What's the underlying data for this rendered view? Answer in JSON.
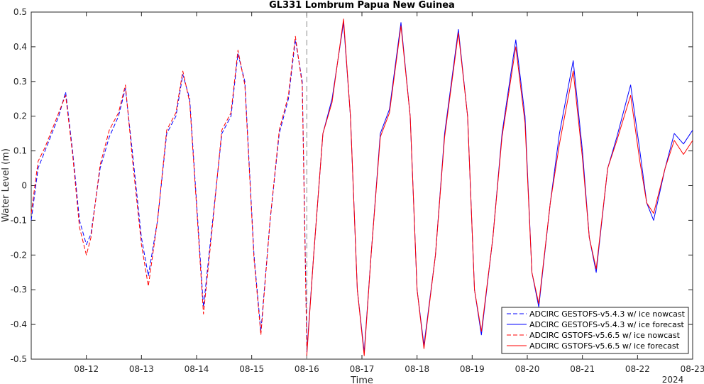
{
  "chart_data": {
    "type": "line",
    "title": "GL331 Lombrum Papua New Guinea",
    "xlabel": "Time",
    "ylabel": "Water Level (m)",
    "year_label": "2024",
    "ylim": [
      -0.5,
      0.5
    ],
    "xlim": [
      "2024-08-11 00:00",
      "2024-08-23 00:00"
    ],
    "yticks": [
      -0.5,
      -0.4,
      -0.3,
      -0.2,
      -0.1,
      0,
      0.1,
      0.2,
      0.3,
      0.4,
      0.5
    ],
    "ytick_labels": [
      "-0.5",
      "-0.4",
      "-0.3",
      "-0.2",
      "-0.1",
      "0",
      "0.1",
      "0.2",
      "0.3",
      "0.4",
      "0.5"
    ],
    "xtick_labels": [
      "08-12",
      "08-13",
      "08-14",
      "08-15",
      "08-16",
      "08-17",
      "08-18",
      "08-19",
      "08-20",
      "08-21",
      "08-22",
      "08-23"
    ],
    "forecast_start": "2024-08-16 00:00",
    "grid": false,
    "legend_position": "bottom-right",
    "series": [
      {
        "name": "ADCIRC GESTOFS-v5.4.3 w/ ice nowcast",
        "color": "#0000ff",
        "style": "dashed",
        "x": [
          "2024-08-11 00:00",
          "2024-08-11 03:00",
          "2024-08-11 06:00",
          "2024-08-11 09:00",
          "2024-08-11 12:00",
          "2024-08-11 15:00",
          "2024-08-11 18:00",
          "2024-08-11 21:00",
          "2024-08-12 00:00",
          "2024-08-12 02:00",
          "2024-08-12 06:00",
          "2024-08-12 10:00",
          "2024-08-12 14:00",
          "2024-08-12 17:00",
          "2024-08-12 20:00",
          "2024-08-13 00:00",
          "2024-08-13 03:00",
          "2024-08-13 07:00",
          "2024-08-13 11:00",
          "2024-08-13 15:00",
          "2024-08-13 18:00",
          "2024-08-13 21:00",
          "2024-08-14 00:00",
          "2024-08-14 03:00",
          "2024-08-14 07:00",
          "2024-08-14 11:00",
          "2024-08-14 15:00",
          "2024-08-14 18:00",
          "2024-08-14 21:00",
          "2024-08-15 01:00",
          "2024-08-15 04:00",
          "2024-08-15 08:00",
          "2024-08-15 12:00",
          "2024-08-15 16:00",
          "2024-08-15 19:00",
          "2024-08-15 22:00",
          "2024-08-16 00:00"
        ],
        "y": [
          -0.1,
          0.05,
          0.1,
          0.15,
          0.2,
          0.27,
          0.1,
          -0.1,
          -0.17,
          -0.14,
          0.05,
          0.14,
          0.2,
          0.28,
          0.1,
          -0.15,
          -0.26,
          -0.1,
          0.15,
          0.2,
          0.32,
          0.25,
          -0.05,
          -0.35,
          -0.1,
          0.15,
          0.2,
          0.38,
          0.3,
          -0.2,
          -0.42,
          -0.1,
          0.15,
          0.25,
          0.42,
          0.3,
          -0.45
        ]
      },
      {
        "name": "ADCIRC GESTOFS-v5.4.3 w/ ice forecast",
        "color": "#0000ff",
        "style": "solid",
        "x": [
          "2024-08-16 00:00",
          "2024-08-16 03:00",
          "2024-08-16 07:00",
          "2024-08-16 11:00",
          "2024-08-16 16:00",
          "2024-08-16 19:00",
          "2024-08-16 22:00",
          "2024-08-17 01:00",
          "2024-08-17 04:00",
          "2024-08-17 08:00",
          "2024-08-17 12:00",
          "2024-08-17 17:00",
          "2024-08-17 21:00",
          "2024-08-18 00:00",
          "2024-08-18 03:00",
          "2024-08-18 08:00",
          "2024-08-18 12:00",
          "2024-08-18 18:00",
          "2024-08-18 22:00",
          "2024-08-19 01:00",
          "2024-08-19 04:00",
          "2024-08-19 09:00",
          "2024-08-19 13:00",
          "2024-08-19 19:00",
          "2024-08-19 23:00",
          "2024-08-20 02:00",
          "2024-08-20 05:00",
          "2024-08-20 10:00",
          "2024-08-20 14:00",
          "2024-08-20 20:00",
          "2024-08-21 00:00",
          "2024-08-21 03:00",
          "2024-08-21 06:00",
          "2024-08-21 11:00",
          "2024-08-21 15:00",
          "2024-08-21 21:00",
          "2024-08-22 01:00",
          "2024-08-22 04:00",
          "2024-08-22 07:00",
          "2024-08-22 12:00",
          "2024-08-22 16:00",
          "2024-08-22 20:00",
          "2024-08-23 00:00"
        ],
        "y": [
          -0.48,
          -0.2,
          0.15,
          0.25,
          0.47,
          0.2,
          -0.3,
          -0.48,
          -0.2,
          0.15,
          0.22,
          0.47,
          0.2,
          -0.3,
          -0.46,
          -0.2,
          0.15,
          0.45,
          0.2,
          -0.3,
          -0.43,
          -0.15,
          0.15,
          0.42,
          0.2,
          -0.25,
          -0.35,
          -0.05,
          0.15,
          0.36,
          0.1,
          -0.15,
          -0.25,
          0.05,
          0.14,
          0.29,
          0.1,
          -0.05,
          -0.1,
          0.05,
          0.15,
          0.12,
          0.16
        ]
      },
      {
        "name": "ADCIRC GSTOFS-v5.6.5 w/ ice nowcast",
        "color": "#ff0000",
        "style": "dashed",
        "x": [
          "2024-08-11 00:00",
          "2024-08-11 03:00",
          "2024-08-11 06:00",
          "2024-08-11 09:00",
          "2024-08-11 12:00",
          "2024-08-11 15:00",
          "2024-08-11 18:00",
          "2024-08-11 21:00",
          "2024-08-12 00:00",
          "2024-08-12 02:00",
          "2024-08-12 06:00",
          "2024-08-12 10:00",
          "2024-08-12 14:00",
          "2024-08-12 17:00",
          "2024-08-12 20:00",
          "2024-08-13 00:00",
          "2024-08-13 03:00",
          "2024-08-13 07:00",
          "2024-08-13 11:00",
          "2024-08-13 15:00",
          "2024-08-13 18:00",
          "2024-08-13 21:00",
          "2024-08-14 00:00",
          "2024-08-14 03:00",
          "2024-08-14 07:00",
          "2024-08-14 11:00",
          "2024-08-14 15:00",
          "2024-08-14 18:00",
          "2024-08-14 21:00",
          "2024-08-15 01:00",
          "2024-08-15 04:00",
          "2024-08-15 08:00",
          "2024-08-15 12:00",
          "2024-08-15 16:00",
          "2024-08-15 19:00",
          "2024-08-15 22:00",
          "2024-08-16 00:00"
        ],
        "y": [
          -0.08,
          0.07,
          0.11,
          0.16,
          0.21,
          0.26,
          0.09,
          -0.12,
          -0.2,
          -0.15,
          0.06,
          0.16,
          0.21,
          0.29,
          0.08,
          -0.17,
          -0.29,
          -0.1,
          0.16,
          0.21,
          0.33,
          0.24,
          -0.06,
          -0.37,
          -0.11,
          0.16,
          0.21,
          0.39,
          0.29,
          -0.21,
          -0.43,
          -0.1,
          0.16,
          0.26,
          0.43,
          0.29,
          -0.47
        ]
      },
      {
        "name": "ADCIRC GSTOFS-v5.6.5 w/ ice forecast",
        "color": "#ff0000",
        "style": "solid",
        "x": [
          "2024-08-16 00:00",
          "2024-08-16 03:00",
          "2024-08-16 07:00",
          "2024-08-16 11:00",
          "2024-08-16 16:00",
          "2024-08-16 19:00",
          "2024-08-16 22:00",
          "2024-08-17 01:00",
          "2024-08-17 04:00",
          "2024-08-17 08:00",
          "2024-08-17 12:00",
          "2024-08-17 17:00",
          "2024-08-17 21:00",
          "2024-08-18 00:00",
          "2024-08-18 03:00",
          "2024-08-18 08:00",
          "2024-08-18 12:00",
          "2024-08-18 18:00",
          "2024-08-18 22:00",
          "2024-08-19 01:00",
          "2024-08-19 04:00",
          "2024-08-19 09:00",
          "2024-08-19 13:00",
          "2024-08-19 19:00",
          "2024-08-19 23:00",
          "2024-08-20 02:00",
          "2024-08-20 05:00",
          "2024-08-20 10:00",
          "2024-08-20 14:00",
          "2024-08-20 20:00",
          "2024-08-21 00:00",
          "2024-08-21 03:00",
          "2024-08-21 06:00",
          "2024-08-21 11:00",
          "2024-08-21 15:00",
          "2024-08-21 21:00",
          "2024-08-22 01:00",
          "2024-08-22 04:00",
          "2024-08-22 07:00",
          "2024-08-22 12:00",
          "2024-08-22 16:00",
          "2024-08-22 20:00",
          "2024-08-23 00:00"
        ],
        "y": [
          -0.49,
          -0.2,
          0.15,
          0.24,
          0.48,
          0.2,
          -0.3,
          -0.49,
          -0.2,
          0.14,
          0.21,
          0.46,
          0.2,
          -0.3,
          -0.47,
          -0.2,
          0.14,
          0.44,
          0.2,
          -0.3,
          -0.42,
          -0.15,
          0.14,
          0.4,
          0.18,
          -0.25,
          -0.34,
          -0.05,
          0.12,
          0.33,
          0.08,
          -0.15,
          -0.24,
          0.05,
          0.13,
          0.26,
          0.07,
          -0.05,
          -0.08,
          0.05,
          0.13,
          0.09,
          0.13
        ]
      }
    ]
  }
}
